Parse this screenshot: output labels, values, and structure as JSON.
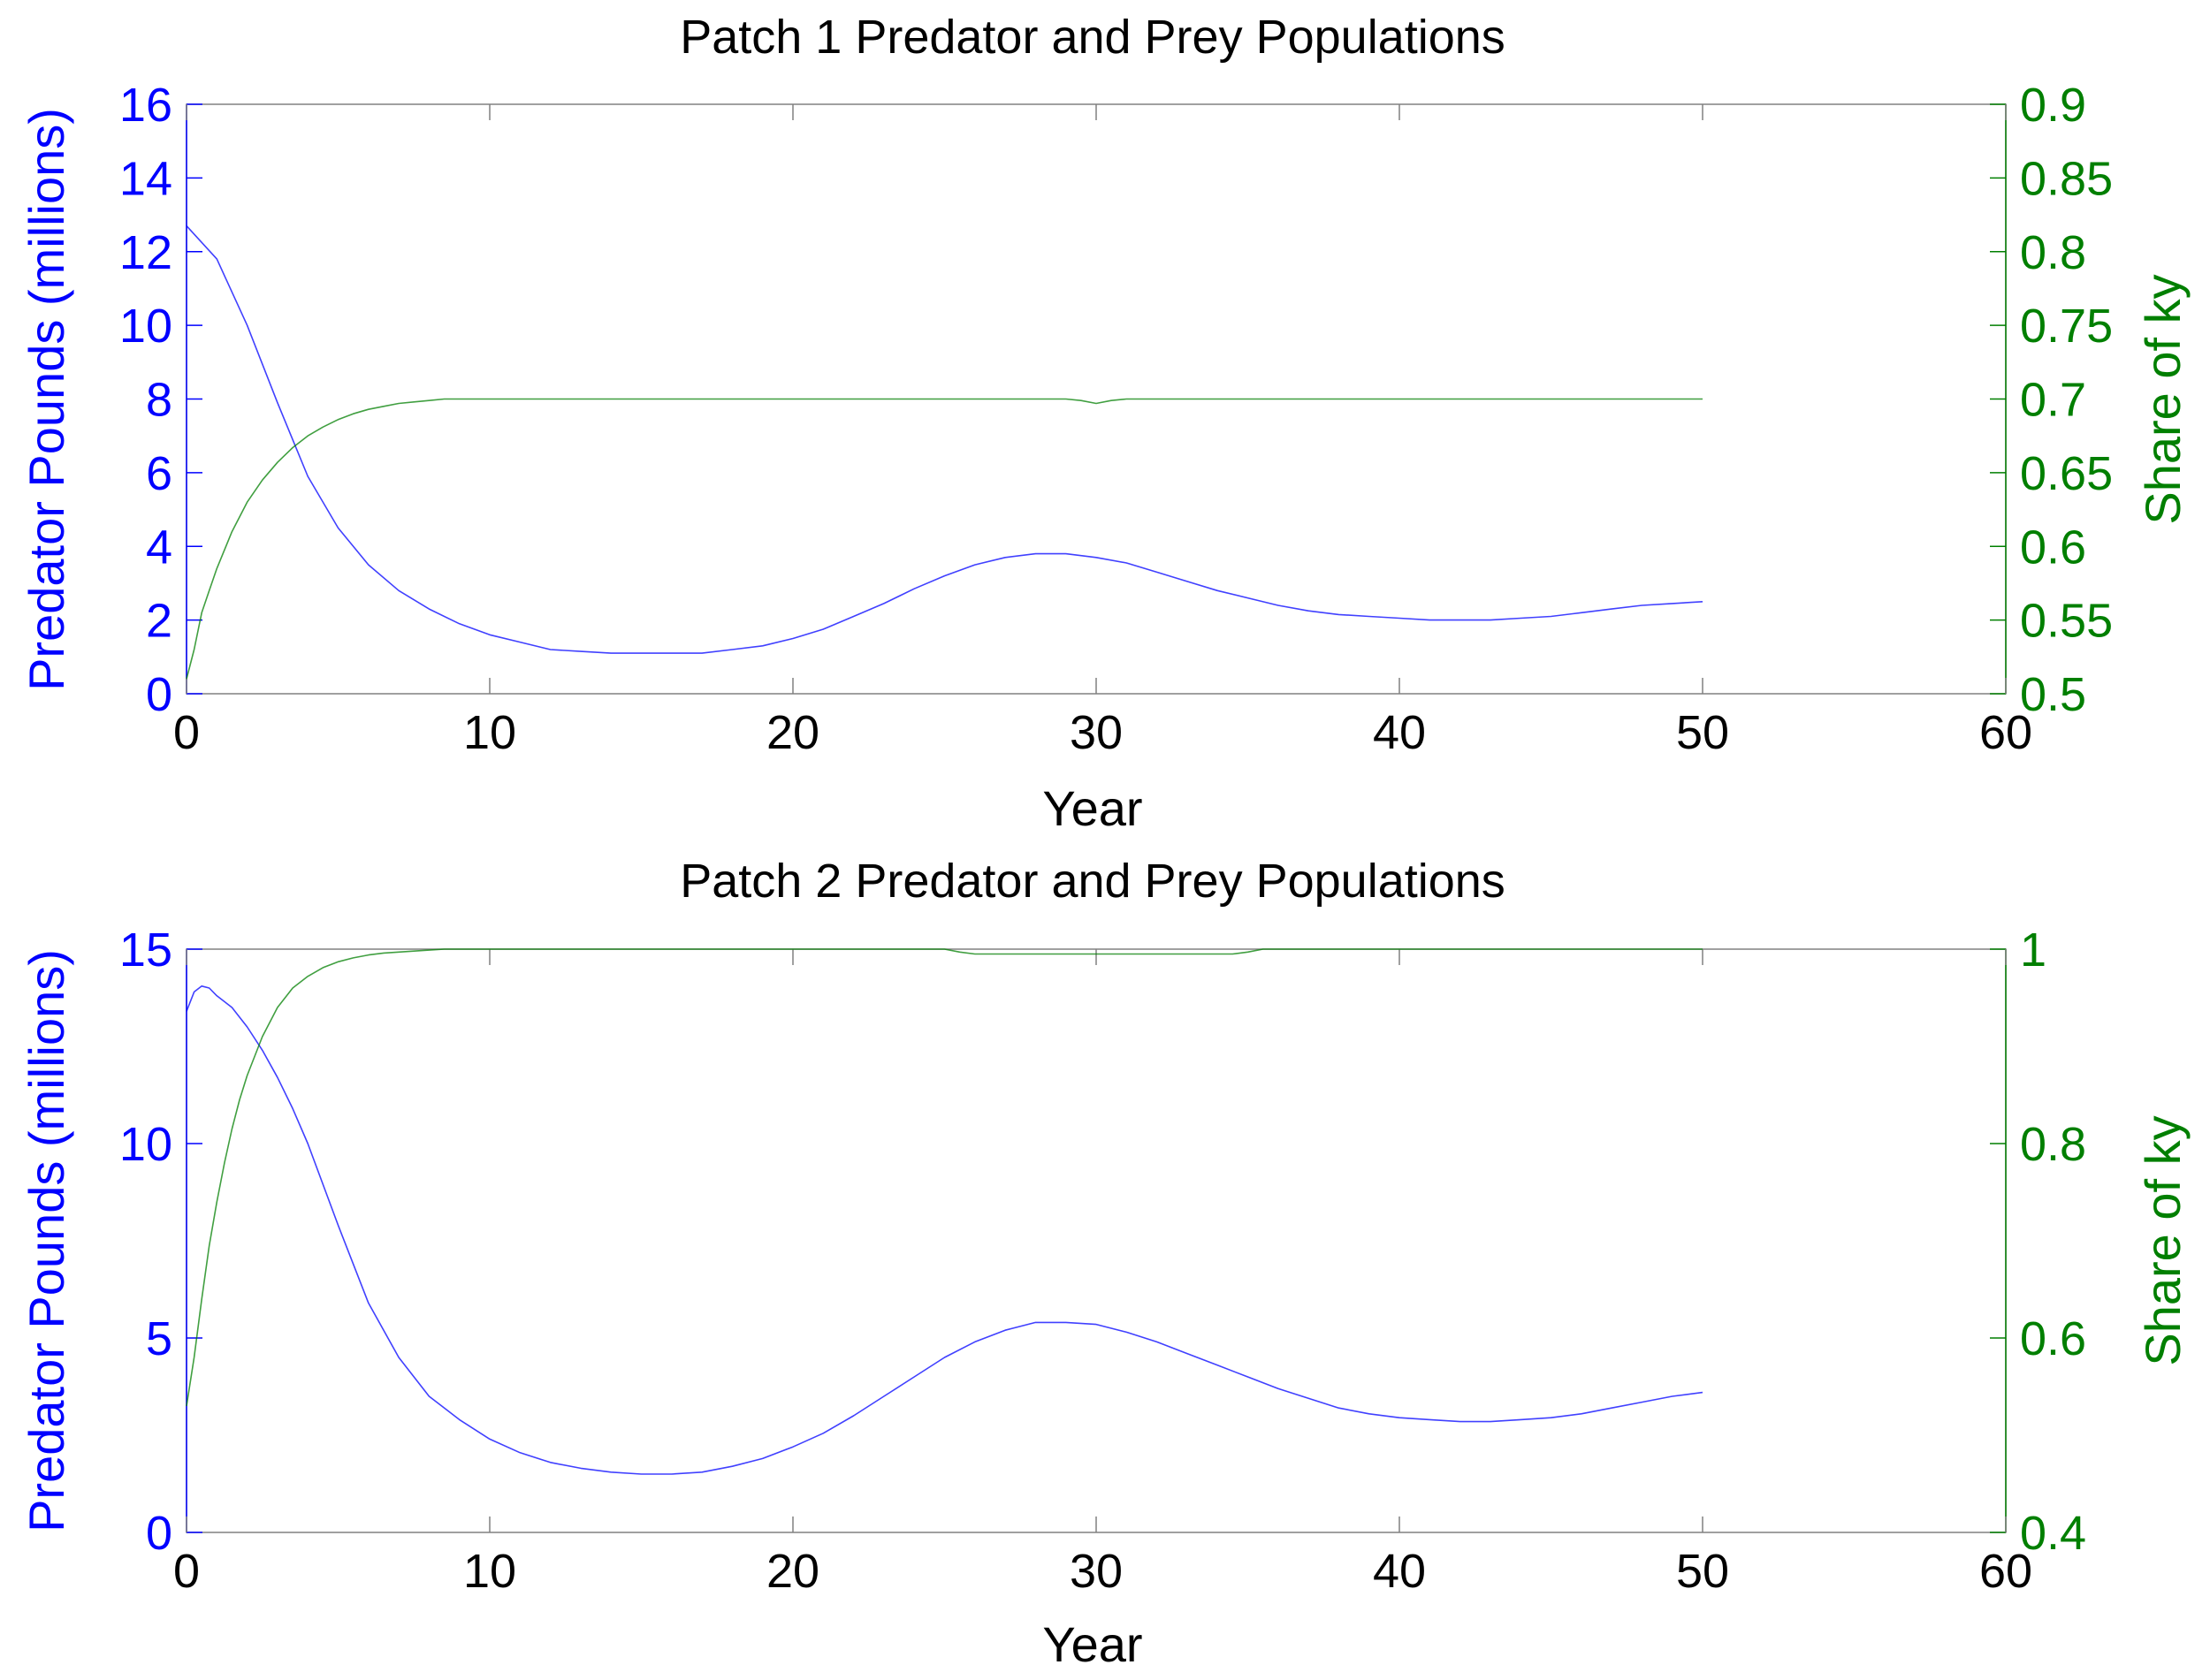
{
  "colors": {
    "left_axis": "#0000ff",
    "right_axis": "#007f00",
    "x_axis": "#000000"
  },
  "chart_data": [
    {
      "type": "line",
      "title": "Patch 1 Predator and Prey Populations",
      "xlabel": "Year",
      "ylabel": "Predator Pounds (millions)",
      "y2label": "Share of ky",
      "xlim": [
        0,
        60
      ],
      "ylim": [
        0,
        16
      ],
      "y2lim": [
        0.5,
        0.9
      ],
      "xticks": [
        "0",
        "10",
        "20",
        "30",
        "40",
        "50",
        "60"
      ],
      "yticks": [
        "0",
        "2",
        "4",
        "6",
        "8",
        "10",
        "12",
        "14",
        "16"
      ],
      "y2ticks": [
        "0.5",
        "0.55",
        "0.6",
        "0.65",
        "0.7",
        "0.75",
        "0.8",
        "0.85",
        "0.9"
      ],
      "grid": false,
      "series": [
        {
          "name": "Predator Pounds",
          "axis": "left",
          "color": "#0000ff",
          "x": [
            0,
            1,
            2,
            3,
            4,
            5,
            6,
            7,
            8,
            9,
            10,
            11,
            12,
            13,
            14,
            15,
            16,
            17,
            18,
            19,
            20,
            21,
            22,
            23,
            24,
            25,
            26,
            27,
            28,
            29,
            30,
            31,
            32,
            33,
            34,
            35,
            36,
            37,
            38,
            39,
            40,
            41,
            42,
            43,
            44,
            45,
            46,
            47,
            48,
            49,
            50
          ],
          "values": [
            12.7,
            11.8,
            10.0,
            7.9,
            5.9,
            4.5,
            3.5,
            2.8,
            2.3,
            1.9,
            1.6,
            1.4,
            1.2,
            1.15,
            1.1,
            1.1,
            1.1,
            1.1,
            1.2,
            1.3,
            1.5,
            1.75,
            2.1,
            2.45,
            2.85,
            3.2,
            3.5,
            3.7,
            3.8,
            3.8,
            3.7,
            3.55,
            3.3,
            3.05,
            2.8,
            2.6,
            2.4,
            2.25,
            2.15,
            2.1,
            2.05,
            2.0,
            2.0,
            2.0,
            2.05,
            2.1,
            2.2,
            2.3,
            2.4,
            2.45,
            2.5
          ]
        },
        {
          "name": "Share of ky",
          "axis": "right",
          "color": "#007f00",
          "x": [
            0,
            0.25,
            0.5,
            0.75,
            1,
            1.5,
            2,
            2.5,
            3,
            3.5,
            4,
            4.5,
            5,
            5.5,
            6,
            6.5,
            7,
            7.5,
            8,
            8.5,
            9,
            10,
            15,
            20,
            25,
            29,
            29.5,
            30,
            30.5,
            31,
            35,
            40,
            45,
            50
          ],
          "values": [
            0.51,
            0.53,
            0.555,
            0.57,
            0.585,
            0.61,
            0.63,
            0.645,
            0.657,
            0.667,
            0.675,
            0.681,
            0.686,
            0.69,
            0.693,
            0.695,
            0.697,
            0.698,
            0.699,
            0.7,
            0.7,
            0.7,
            0.7,
            0.7,
            0.7,
            0.7,
            0.699,
            0.697,
            0.699,
            0.7,
            0.7,
            0.7,
            0.7,
            0.7
          ]
        }
      ]
    },
    {
      "type": "line",
      "title": "Patch 2 Predator and Prey Populations",
      "xlabel": "Year",
      "ylabel": "Predator Pounds (millions)",
      "y2label": "Share of ky",
      "xlim": [
        0,
        60
      ],
      "ylim": [
        0,
        15
      ],
      "y2lim": [
        0.4,
        1
      ],
      "xticks": [
        "0",
        "10",
        "20",
        "30",
        "40",
        "50",
        "60"
      ],
      "yticks": [
        "0",
        "5",
        "10",
        "15"
      ],
      "y2ticks": [
        "0.4",
        "0.6",
        "0.8",
        "1"
      ],
      "grid": false,
      "series": [
        {
          "name": "Predator Pounds",
          "axis": "left",
          "color": "#0000ff",
          "x": [
            0,
            0.25,
            0.5,
            0.75,
            1,
            1.5,
            2,
            2.5,
            3,
            3.5,
            4,
            5,
            6,
            7,
            8,
            9,
            10,
            11,
            12,
            13,
            14,
            15,
            16,
            17,
            18,
            19,
            20,
            21,
            22,
            23,
            24,
            25,
            26,
            27,
            28,
            29,
            30,
            31,
            32,
            33,
            34,
            35,
            36,
            37,
            38,
            39,
            40,
            41,
            42,
            43,
            44,
            45,
            46,
            47,
            48,
            49,
            50
          ],
          "values": [
            13.4,
            13.9,
            14.05,
            14.0,
            13.8,
            13.5,
            13.0,
            12.4,
            11.7,
            10.9,
            10.0,
            7.9,
            5.9,
            4.5,
            3.5,
            2.9,
            2.4,
            2.05,
            1.8,
            1.65,
            1.55,
            1.5,
            1.5,
            1.55,
            1.7,
            1.9,
            2.2,
            2.55,
            3.0,
            3.5,
            4.0,
            4.5,
            4.9,
            5.2,
            5.4,
            5.4,
            5.35,
            5.15,
            4.9,
            4.6,
            4.3,
            4.0,
            3.7,
            3.45,
            3.2,
            3.05,
            2.95,
            2.9,
            2.85,
            2.85,
            2.9,
            2.95,
            3.05,
            3.2,
            3.35,
            3.5,
            3.6
          ]
        },
        {
          "name": "Share of ky",
          "axis": "right",
          "color": "#007f00",
          "x": [
            0,
            0.25,
            0.5,
            0.75,
            1,
            1.25,
            1.5,
            1.75,
            2,
            2.5,
            3,
            3.5,
            4,
            4.5,
            5,
            5.5,
            6,
            6.5,
            7,
            7.5,
            8,
            8.5,
            9,
            10,
            15,
            20,
            25,
            25.5,
            26,
            30,
            34.5,
            35,
            35.5,
            40,
            45,
            50
          ],
          "values": [
            0.53,
            0.58,
            0.64,
            0.695,
            0.74,
            0.78,
            0.815,
            0.845,
            0.87,
            0.91,
            0.94,
            0.96,
            0.972,
            0.981,
            0.987,
            0.991,
            0.994,
            0.996,
            0.997,
            0.998,
            0.999,
            1.0,
            1.0,
            1.0,
            1.0,
            1.0,
            1.0,
            0.997,
            0.995,
            0.995,
            0.995,
            0.997,
            1.0,
            1.0,
            1.0,
            1.0
          ]
        }
      ]
    }
  ]
}
